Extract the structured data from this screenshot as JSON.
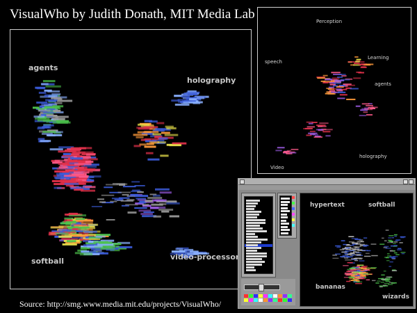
{
  "slide": {
    "title": "VisualWho by Judith Donath, MIT Media Lab",
    "source": "Source: http://smg.www.media.mit.edu/projects/VisualWho/"
  },
  "main_view": {
    "anchors": [
      {
        "id": "agents",
        "label": "agents"
      },
      {
        "id": "holography",
        "label": "holography"
      },
      {
        "id": "softball",
        "label": "softball"
      },
      {
        "id": "video-processor",
        "label": "video-processor"
      }
    ]
  },
  "small_view": {
    "anchors": [
      {
        "id": "perception",
        "label": "Perception"
      },
      {
        "id": "speech",
        "label": "speech"
      },
      {
        "id": "learning",
        "label": "Learning"
      },
      {
        "id": "agents",
        "label": "agents"
      },
      {
        "id": "holography",
        "label": "holography"
      },
      {
        "id": "video",
        "label": "Video"
      }
    ]
  },
  "app_window": {
    "anchors": [
      {
        "id": "hypertext",
        "label": "hypertext"
      },
      {
        "id": "softball",
        "label": "softball"
      },
      {
        "id": "bananas",
        "label": "bananas"
      },
      {
        "id": "wizards",
        "label": "wizards"
      }
    ]
  },
  "colors": {
    "red": "#e0304a",
    "pink": "#ff5a8a",
    "blue": "#3b5bd8",
    "lightblue": "#8ab0ff",
    "green": "#4cc24c",
    "yellow": "#e8e04a",
    "orange": "#ff9a3a",
    "purple": "#9a5ae0",
    "gray": "#9a9a9a"
  }
}
